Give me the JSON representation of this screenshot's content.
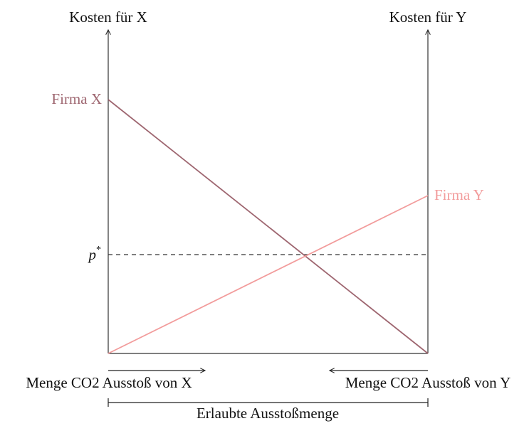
{
  "axes": {
    "left_label": "Kosten für X",
    "right_label": "Kosten für Y",
    "bottom_left_label": "Menge CO2 Ausstoß von X",
    "bottom_right_label": "Menge CO2 Ausstoß von Y",
    "span_label": "Erlaubte Ausstoßmenge"
  },
  "lines": {
    "firm_x": "Firma X",
    "firm_y": "Firma Y"
  },
  "price": {
    "base": "p",
    "superscript": "*"
  }
}
